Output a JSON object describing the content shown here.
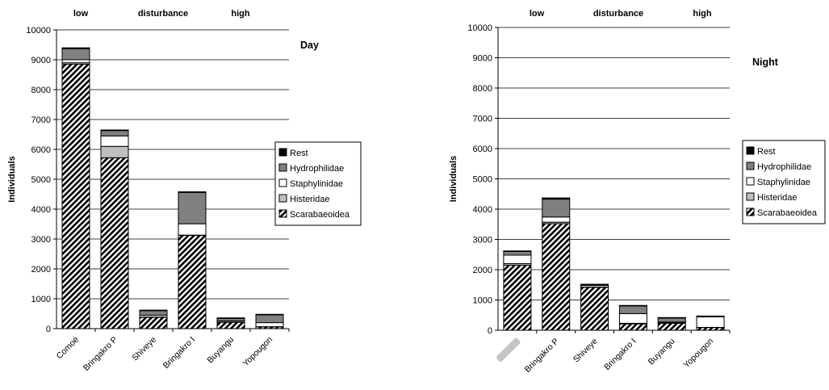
{
  "chart_data": [
    {
      "type": "bar",
      "stacked": true,
      "title": "Day",
      "ylabel": "Individuals",
      "ylim": [
        0,
        10000
      ],
      "yticks": [
        0,
        1000,
        2000,
        3000,
        4000,
        5000,
        6000,
        7000,
        8000,
        9000,
        10000
      ],
      "grid": true,
      "top_labels": [
        "low",
        "disturbance",
        "high"
      ],
      "categories": [
        "Comoé",
        "Bringakro P",
        "Shiveye",
        "Bringakro I",
        "Buyangu",
        "Yopougon"
      ],
      "legend_position": "right",
      "series": [
        {
          "name": "Scarabaeoidea",
          "pattern": "hatch",
          "color": "#000000",
          "values": [
            8850,
            5720,
            380,
            3120,
            210,
            60
          ]
        },
        {
          "name": "Histeridae",
          "pattern": "solid",
          "color": "#c0c0c0",
          "values": [
            50,
            380,
            10,
            10,
            10,
            5
          ]
        },
        {
          "name": "Staphylinidae",
          "pattern": "solid",
          "color": "#ffffff",
          "values": [
            100,
            350,
            60,
            380,
            40,
            135
          ]
        },
        {
          "name": "Hydrophilidae",
          "pattern": "solid",
          "color": "#808080",
          "values": [
            370,
            180,
            150,
            1050,
            80,
            260
          ]
        },
        {
          "name": "Rest",
          "pattern": "solid",
          "color": "#000000",
          "values": [
            30,
            20,
            20,
            20,
            20,
            20
          ]
        }
      ]
    },
    {
      "type": "bar",
      "stacked": true,
      "title": "Night",
      "ylabel": "Individuals",
      "ylim": [
        0,
        10000
      ],
      "yticks": [
        0,
        1000,
        2000,
        3000,
        4000,
        5000,
        6000,
        7000,
        8000,
        9000,
        10000
      ],
      "grid": true,
      "top_labels": [
        "low",
        "disturbance",
        "high"
      ],
      "categories": [
        "",
        "Bringakro P",
        "Shiveye",
        "Bringakro I",
        "Buyangu",
        "Yopougon"
      ],
      "legend_position": "right",
      "series": [
        {
          "name": "Scarabaeoidea",
          "pattern": "hatch",
          "color": "#000000",
          "values": [
            2150,
            3520,
            1420,
            210,
            230,
            90
          ]
        },
        {
          "name": "Histeridae",
          "pattern": "solid",
          "color": "#c0c0c0",
          "values": [
            50,
            50,
            10,
            20,
            10,
            5
          ]
        },
        {
          "name": "Staphylinidae",
          "pattern": "solid",
          "color": "#ffffff",
          "values": [
            280,
            170,
            50,
            320,
            30,
            345
          ]
        },
        {
          "name": "Hydrophilidae",
          "pattern": "solid",
          "color": "#808080",
          "values": [
            120,
            590,
            20,
            250,
            130,
            10
          ]
        },
        {
          "name": "Rest",
          "pattern": "solid",
          "color": "#000000",
          "values": [
            20,
            40,
            20,
            20,
            20,
            20
          ]
        }
      ]
    }
  ]
}
